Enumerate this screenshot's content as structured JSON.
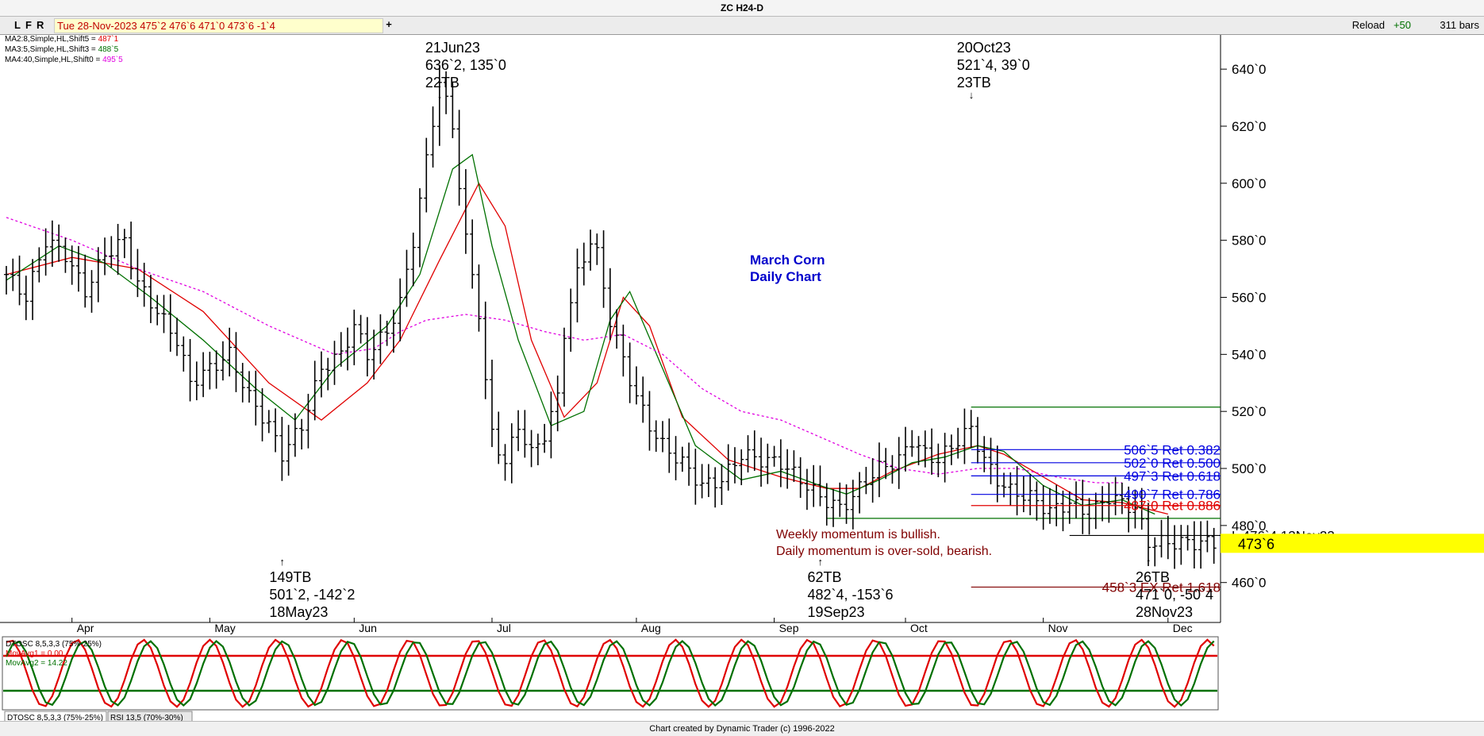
{
  "window": {
    "title": "ZC H24-D"
  },
  "toolbar": {
    "buttons": [
      "L",
      "F",
      "R"
    ],
    "date_readout": "Tue 28-Nov-2023  475`2  476`6  471`0  473`6  -1`4",
    "add_label": "+",
    "reload_label": "Reload",
    "reload_increment": "+50",
    "bars_label": "311 bars"
  },
  "ma_legend": [
    {
      "label": "MA2:8,Simple,HL,Shift5 = ",
      "value": "487`1",
      "color": "#e00000"
    },
    {
      "label": "MA3:5,Simple,HL,Shift3 = ",
      "value": "488`5",
      "color": "#007000"
    },
    {
      "label": "MA4:40,Simple,HL,Shift0 = ",
      "value": "495`5",
      "color": "#e000e0"
    }
  ],
  "osc_legend": [
    {
      "label": "DTOSC 8,5,3,3 (75%-25%)",
      "color": "#000000"
    },
    {
      "label": "MovAvg1 = 0.00",
      "color": "#e00000"
    },
    {
      "label": "MovAvg2 = 14.22",
      "color": "#007000"
    }
  ],
  "tabs": [
    "DTOSC 8,5,3,3 (75%-25%)",
    "RSI 13,5 (70%-30%)"
  ],
  "footer": "Chart created by Dynamic Trader  (c)  1996-2022",
  "chart_data": {
    "type": "bar",
    "price_axis": {
      "ylim": [
        446,
        652
      ],
      "ticks": [
        "460`0",
        "480`0",
        "500`0",
        "520`0",
        "540`0",
        "560`0",
        "580`0",
        "600`0",
        "620`0",
        "640`0"
      ],
      "tick_values": [
        460,
        480,
        500,
        520,
        540,
        560,
        580,
        600,
        620,
        640
      ]
    },
    "months": [
      "Apr",
      "May",
      "Jun",
      "Jul",
      "Aug",
      "Sep",
      "Oct",
      "Nov",
      "Dec"
    ],
    "month_positions": [
      10,
      31,
      53,
      74,
      96,
      117,
      137,
      158,
      177
    ],
    "bar_count": 185,
    "price_anchors": [
      [
        0,
        568
      ],
      [
        3,
        560
      ],
      [
        6,
        580
      ],
      [
        9,
        575
      ],
      [
        12,
        562
      ],
      [
        15,
        575
      ],
      [
        18,
        580
      ],
      [
        20,
        565
      ],
      [
        23,
        555
      ],
      [
        26,
        545
      ],
      [
        28,
        530
      ],
      [
        31,
        535
      ],
      [
        34,
        540
      ],
      [
        37,
        525
      ],
      [
        40,
        515
      ],
      [
        42,
        505
      ],
      [
        45,
        515
      ],
      [
        48,
        535
      ],
      [
        51,
        540
      ],
      [
        53,
        550
      ],
      [
        55,
        540
      ],
      [
        58,
        548
      ],
      [
        60,
        558
      ],
      [
        62,
        580
      ],
      [
        64,
        608
      ],
      [
        66,
        636
      ],
      [
        68,
        620
      ],
      [
        70,
        580
      ],
      [
        72,
        555
      ],
      [
        73,
        530
      ],
      [
        74,
        512
      ],
      [
        76,
        502
      ],
      [
        78,
        515
      ],
      [
        80,
        505
      ],
      [
        82,
        512
      ],
      [
        84,
        525
      ],
      [
        85,
        548
      ],
      [
        87,
        568
      ],
      [
        89,
        580
      ],
      [
        90,
        575
      ],
      [
        92,
        552
      ],
      [
        94,
        538
      ],
      [
        96,
        525
      ],
      [
        98,
        515
      ],
      [
        100,
        508
      ],
      [
        103,
        502
      ],
      [
        106,
        494
      ],
      [
        109,
        496
      ],
      [
        112,
        505
      ],
      [
        115,
        503
      ],
      [
        118,
        502
      ],
      [
        121,
        496
      ],
      [
        124,
        490
      ],
      [
        127,
        486
      ],
      [
        129,
        490
      ],
      [
        131,
        496
      ],
      [
        133,
        500
      ],
      [
        136,
        503
      ],
      [
        138,
        510
      ],
      [
        140,
        505
      ],
      [
        142,
        503
      ],
      [
        145,
        510
      ],
      [
        147,
        514
      ],
      [
        149,
        503
      ],
      [
        151,
        496
      ],
      [
        153,
        492
      ],
      [
        156,
        490
      ],
      [
        159,
        485
      ],
      [
        162,
        488
      ],
      [
        165,
        484
      ],
      [
        168,
        490
      ],
      [
        170,
        488
      ],
      [
        172,
        486
      ],
      [
        174,
        474
      ]
    ],
    "moving_averages": [
      {
        "name": "MA2",
        "color": "#e00000",
        "points": [
          [
            0,
            568
          ],
          [
            10,
            574
          ],
          [
            20,
            570
          ],
          [
            30,
            555
          ],
          [
            40,
            530
          ],
          [
            48,
            517
          ],
          [
            55,
            530
          ],
          [
            60,
            545
          ],
          [
            66,
            573
          ],
          [
            72,
            600
          ],
          [
            76,
            585
          ],
          [
            80,
            545
          ],
          [
            85,
            518
          ],
          [
            90,
            530
          ],
          [
            94,
            560
          ],
          [
            98,
            550
          ],
          [
            103,
            518
          ],
          [
            110,
            503
          ],
          [
            118,
            497
          ],
          [
            125,
            493
          ],
          [
            130,
            493
          ],
          [
            135,
            499
          ],
          [
            142,
            505
          ],
          [
            148,
            508
          ],
          [
            152,
            505
          ],
          [
            158,
            497
          ],
          [
            164,
            489
          ],
          [
            170,
            488
          ],
          [
            177,
            484
          ]
        ]
      },
      {
        "name": "MA3",
        "color": "#007000",
        "points": [
          [
            0,
            566
          ],
          [
            8,
            578
          ],
          [
            15,
            572
          ],
          [
            22,
            560
          ],
          [
            30,
            545
          ],
          [
            38,
            528
          ],
          [
            44,
            517
          ],
          [
            50,
            535
          ],
          [
            58,
            550
          ],
          [
            63,
            568
          ],
          [
            68,
            605
          ],
          [
            71,
            610
          ],
          [
            74,
            578
          ],
          [
            78,
            545
          ],
          [
            83,
            515
          ],
          [
            88,
            520
          ],
          [
            92,
            552
          ],
          [
            95,
            562
          ],
          [
            100,
            535
          ],
          [
            105,
            508
          ],
          [
            112,
            496
          ],
          [
            118,
            499
          ],
          [
            124,
            494
          ],
          [
            128,
            491
          ],
          [
            133,
            496
          ],
          [
            138,
            502
          ],
          [
            143,
            504
          ],
          [
            148,
            508
          ],
          [
            152,
            506
          ],
          [
            158,
            494
          ],
          [
            164,
            487
          ],
          [
            170,
            489
          ],
          [
            175,
            484
          ]
        ]
      },
      {
        "name": "MA4",
        "color": "#e000e0",
        "points": [
          [
            0,
            588
          ],
          [
            10,
            580
          ],
          [
            20,
            570
          ],
          [
            30,
            562
          ],
          [
            40,
            550
          ],
          [
            50,
            540
          ],
          [
            56,
            542
          ],
          [
            60,
            548
          ],
          [
            64,
            552
          ],
          [
            70,
            554
          ],
          [
            76,
            552
          ],
          [
            82,
            548
          ],
          [
            88,
            545
          ],
          [
            94,
            547
          ],
          [
            100,
            540
          ],
          [
            106,
            528
          ],
          [
            112,
            520
          ],
          [
            118,
            517
          ],
          [
            125,
            510
          ],
          [
            130,
            505
          ],
          [
            136,
            500
          ],
          [
            142,
            498
          ],
          [
            148,
            500
          ],
          [
            154,
            500
          ],
          [
            160,
            497
          ],
          [
            166,
            495
          ],
          [
            170,
            495
          ]
        ]
      }
    ],
    "fib_levels": [
      {
        "label": "506`5 Ret 0.382",
        "value": 506.6,
        "color": "#0000e0",
        "start": 147
      },
      {
        "label": "502`0 Ret 0.500",
        "value": 502.0,
        "color": "#0000e0",
        "start": 147
      },
      {
        "label": "497`3 Ret 0.618",
        "value": 497.4,
        "color": "#0000e0",
        "start": 147
      },
      {
        "label": "490`7 Ret 0.786",
        "value": 490.9,
        "color": "#0000e0",
        "start": 147
      },
      {
        "label": "487`0 Ret 0.886",
        "value": 487.0,
        "color": "#e00000",
        "start": 147
      },
      {
        "label": "458`3 EX Ret 1.618",
        "value": 458.4,
        "color": "#800000",
        "start": 147
      }
    ],
    "horizontal_lines": [
      {
        "value": 521.5,
        "color": "#007000",
        "start": 147,
        "end": 185
      },
      {
        "value": 482.5,
        "color": "#007000",
        "start": 125,
        "end": 185
      },
      {
        "value": 476.5,
        "color": "#000000",
        "start": 162,
        "end": 185
      }
    ],
    "low_marker": {
      "label": "L 476`4 13Nov23",
      "value": 476.5
    },
    "current_price": "473`6",
    "current_value": 473.75,
    "pivots": [
      {
        "bar": 66,
        "lines": [
          "21Jun23",
          "636`2, 135`0",
          "22TB"
        ],
        "position": "top"
      },
      {
        "bar": 147,
        "lines": [
          "20Oct23",
          "521`4, 39`0",
          "23TB"
        ],
        "position": "top"
      },
      {
        "bar": 42,
        "lines": [
          "149TB",
          "501`2, -142`2",
          "18May23"
        ],
        "position": "bottom"
      },
      {
        "bar": 124,
        "lines": [
          "62TB",
          "482`4, -153`6",
          "19Sep23"
        ],
        "position": "bottom"
      },
      {
        "bar": 174,
        "lines": [
          "26TB",
          "471`0, -50`4",
          "28Nov23"
        ],
        "position": "bottom"
      }
    ],
    "annotations": [
      {
        "lines": [
          "March Corn",
          "Daily Chart"
        ],
        "color": "#0000cc"
      },
      {
        "lines": [
          "Weekly momentum is bullish.",
          "Daily momentum is over-sold, bearish."
        ],
        "color": "#800000"
      }
    ],
    "oscillator": {
      "ylim": [
        0,
        100
      ],
      "upper": 75,
      "lower": 25,
      "fast_color": "#e00000",
      "slow_color": "#007000"
    }
  }
}
